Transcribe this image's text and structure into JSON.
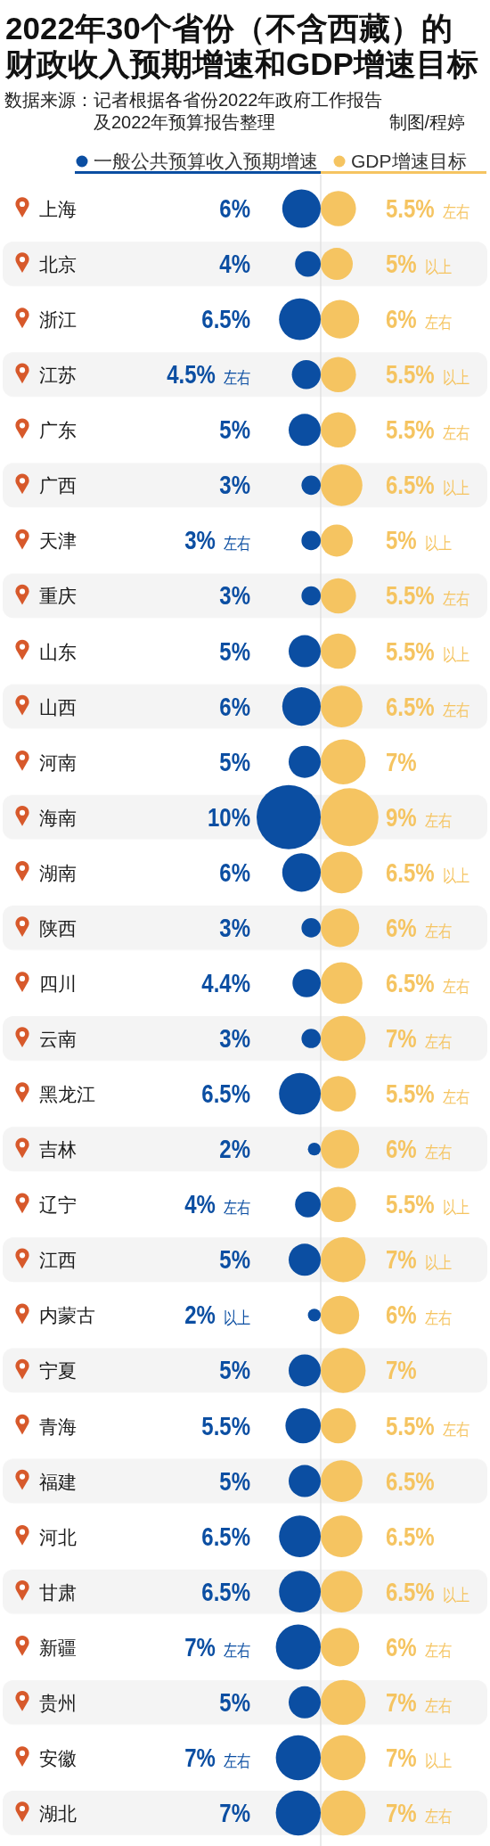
{
  "chart_data": {
    "type": "other",
    "title": "2022年30个省份（不含西藏）的财政收入预期增速和GDP增速目标",
    "annotations": [
      "数据来源：记者根据各省份2022年政府工作报告及2022年预算报告整理",
      "制图/程婷"
    ],
    "categories": [
      "上海",
      "北京",
      "浙江",
      "江苏",
      "广东",
      "广西",
      "天津",
      "重庆",
      "山东",
      "山西",
      "河南",
      "海南",
      "湖南",
      "陕西",
      "四川",
      "云南",
      "黑龙江",
      "吉林",
      "辽宁",
      "江西",
      "内蒙古",
      "宁夏",
      "青海",
      "福建",
      "河北",
      "甘肃",
      "新疆",
      "贵州",
      "安徽",
      "湖北"
    ],
    "series": [
      {
        "name": "一般公共预算收入预期增速",
        "color": "#0b4ea2",
        "values": [
          6,
          4,
          6.5,
          4.5,
          5,
          3,
          3,
          3,
          5,
          6,
          5,
          10,
          6,
          3,
          4.4,
          3,
          6.5,
          2,
          4,
          5,
          2,
          5,
          5.5,
          5,
          6.5,
          6.5,
          7,
          5,
          7,
          7
        ],
        "value_labels": [
          "6%",
          "4%",
          "6.5%",
          "4.5% 左右",
          "5%",
          "3%",
          "3% 左右",
          "3%",
          "5%",
          "6%",
          "5%",
          "10%",
          "6%",
          "3%",
          "4.4%",
          "3%",
          "6.5%",
          "2%",
          "4% 左右",
          "5%",
          "2% 以上",
          "5%",
          "5.5%",
          "5%",
          "6.5%",
          "6.5%",
          "7% 左右",
          "5%",
          "7% 左右",
          "7%"
        ]
      },
      {
        "name": "GDP增速目标",
        "color": "#f5c461",
        "values": [
          5.5,
          5,
          6,
          5.5,
          5.5,
          6.5,
          5,
          5.5,
          5.5,
          6.5,
          7,
          9,
          6.5,
          6,
          6.5,
          7,
          5.5,
          6,
          5.5,
          7,
          6,
          7,
          5.5,
          6.5,
          6.5,
          6.5,
          6,
          7,
          7,
          7
        ],
        "value_labels": [
          "5.5% 左右",
          "5% 以上",
          "6% 左右",
          "5.5% 以上",
          "5.5% 左右",
          "6.5% 以上",
          "5% 以上",
          "5.5% 左右",
          "5.5% 以上",
          "6.5% 左右",
          "7%",
          "9% 左右",
          "6.5% 以上",
          "6% 左右",
          "6.5% 左右",
          "7% 左右",
          "5.5% 左右",
          "6% 左右",
          "5.5% 以上",
          "7% 以上",
          "6% 左右",
          "7%",
          "5.5% 左右",
          "6.5%",
          "6.5%",
          "6.5% 以上",
          "6% 左右",
          "7% 左右",
          "7% 以上",
          "7% 左右"
        ]
      }
    ],
    "legend": "top right"
  }
}
